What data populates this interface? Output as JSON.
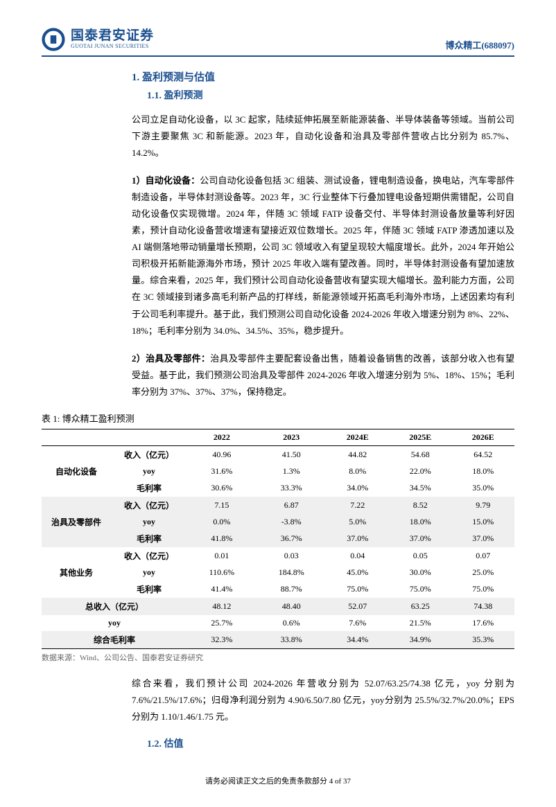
{
  "header": {
    "logo_cn": "国泰君安证券",
    "logo_en": "GUOTAI JUNAN SECURITIES",
    "stock": "博众精工(688097)"
  },
  "sections": {
    "s1": "1.  盈利预测与估值",
    "s11": "1.1.  盈利预测",
    "s12": "1.2.  估值"
  },
  "p1": "公司立足自动化设备，以 3C 起家，陆续延伸拓展至新能源装备、半导体装备等领域。当前公司下游主要聚焦 3C 和新能源。2023 年，自动化设备和治具及零部件营收占比分别为 85.7%、14.2%。",
  "p2_label": "1）自动化设备：",
  "p2": "公司自动化设备包括 3C 组装、测试设备，锂电制造设备，换电站，汽车零部件制造设备，半导体封测设备等。2023 年，3C 行业整体下行叠加锂电设备短期供需错配，公司自动化设备仅实现微增。2024 年，伴随 3C 领域 FATP 设备交付、半导体封测设备放量等利好因素，预计自动化设备营收增速有望接近双位数增长。2025 年，伴随 3C 领域 FATP 渗透加速以及 AI 端侧落地带动销量增长预期，公司 3C 领域收入有望呈现较大幅度增长。此外，2024 年开始公司积极开拓新能源海外市场，预计 2025 年收入端有望改善。同时，半导体封测设备有望加速放量。综合来看，2025 年，我们预计公司自动化设备营收有望实现大幅增长。盈利能力方面，公司在 3C 领域接到诸多高毛利新产品的打样线，新能源领域开拓高毛利海外市场，上述因素均有利于公司毛利率提升。基于此，我们预测公司自动化设备 2024-2026 年收入增速分别为 8%、22%、18%；毛利率分别为 34.0%、34.5%、35%，稳步提升。",
  "p3_label": "2）治具及零部件：",
  "p3": "治具及零部件主要配套设备出售，随着设备销售的改善，该部分收入也有望受益。基于此，我们预测公司治具及零部件 2024-2026 年收入增速分别为 5%、18%、15%；毛利率分别为 37%、37%、37%，保持稳定。",
  "table": {
    "title": "表 1:  博众精工盈利预测",
    "years": [
      "2022",
      "2023",
      "2024E",
      "2025E",
      "2026E"
    ],
    "metrics": {
      "rev": "收入（亿元）",
      "yoy": "yoy",
      "margin": "毛利率"
    },
    "segments": [
      {
        "name": "自动化设备",
        "gray": false,
        "rev": [
          "40.96",
          "41.50",
          "44.82",
          "54.68",
          "64.52"
        ],
        "yoy": [
          "31.6%",
          "1.3%",
          "8.0%",
          "22.0%",
          "18.0%"
        ],
        "margin": [
          "30.6%",
          "33.3%",
          "34.0%",
          "34.5%",
          "35.0%"
        ]
      },
      {
        "name": "治具及零部件",
        "gray": true,
        "rev": [
          "7.15",
          "6.87",
          "7.22",
          "8.52",
          "9.79"
        ],
        "yoy": [
          "0.0%",
          "-3.8%",
          "5.0%",
          "18.0%",
          "15.0%"
        ],
        "margin": [
          "41.8%",
          "36.7%",
          "37.0%",
          "37.0%",
          "37.0%"
        ]
      },
      {
        "name": "其他业务",
        "gray": false,
        "rev": [
          "0.01",
          "0.03",
          "0.04",
          "0.05",
          "0.07"
        ],
        "yoy": [
          "110.6%",
          "184.8%",
          "45.0%",
          "30.0%",
          "25.0%"
        ],
        "margin": [
          "41.4%",
          "88.7%",
          "75.0%",
          "75.0%",
          "75.0%"
        ]
      }
    ],
    "totals": {
      "rev_label": "总收入（亿元）",
      "rev": [
        "48.12",
        "48.40",
        "52.07",
        "63.25",
        "74.38"
      ],
      "yoy_label": "yoy",
      "yoy": [
        "25.7%",
        "0.6%",
        "7.6%",
        "21.5%",
        "17.6%"
      ],
      "margin_label": "综合毛利率",
      "margin": [
        "32.3%",
        "33.8%",
        "34.4%",
        "34.9%",
        "35.3%"
      ]
    },
    "source": "数据来源：Wind、公司公告、国泰君安证券研究"
  },
  "p4": "综合来看，我们预计公司 2024-2026 年营收分别为 52.07/63.25/74.38 亿元，yoy 分别为 7.6%/21.5%/17.6%；归母净利润分别为 4.90/6.50/7.80 亿元，yoy分别为 25.5%/32.7%/20.0%；EPS 分别为 1.10/1.46/1.75 元。",
  "footer": "请务必阅读正文之后的免责条款部分 4 of 37"
}
